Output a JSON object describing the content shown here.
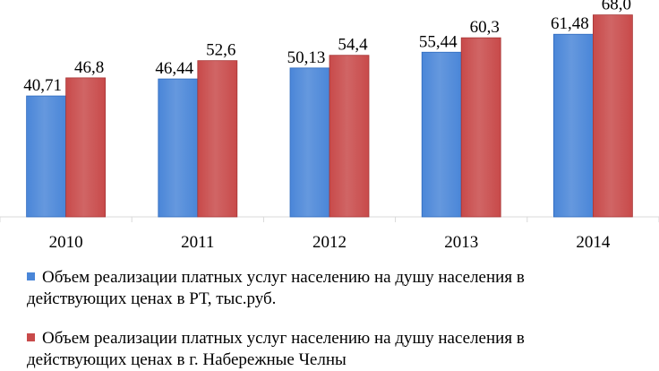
{
  "chart_data": {
    "type": "bar",
    "categories": [
      "2010",
      "2011",
      "2012",
      "2013",
      "2014"
    ],
    "series": [
      {
        "name_line1": "Объем реализации платных  услуг населению на душу населения в",
        "name_line2": "действующих ценах в РТ, тыс.руб.",
        "values": [
          40.71,
          46.44,
          50.13,
          55.44,
          61.48
        ],
        "labels": [
          "40,71",
          "46,44",
          "50,13",
          "55,44",
          "61,48"
        ],
        "color": "#4a86d8"
      },
      {
        "name_line1": "Объем реализации платных  услуг населению на душу населения в",
        "name_line2": "действующих ценах в г. Набережные Челны",
        "values": [
          46.8,
          52.6,
          54.4,
          60.3,
          68.0
        ],
        "labels": [
          "46,8",
          "52,6",
          "54,4",
          "60,3",
          "68,0"
        ],
        "color": "#c84a4a"
      }
    ],
    "ylim": [
      0,
      70
    ],
    "grid": false,
    "legend_position": "bottom"
  }
}
